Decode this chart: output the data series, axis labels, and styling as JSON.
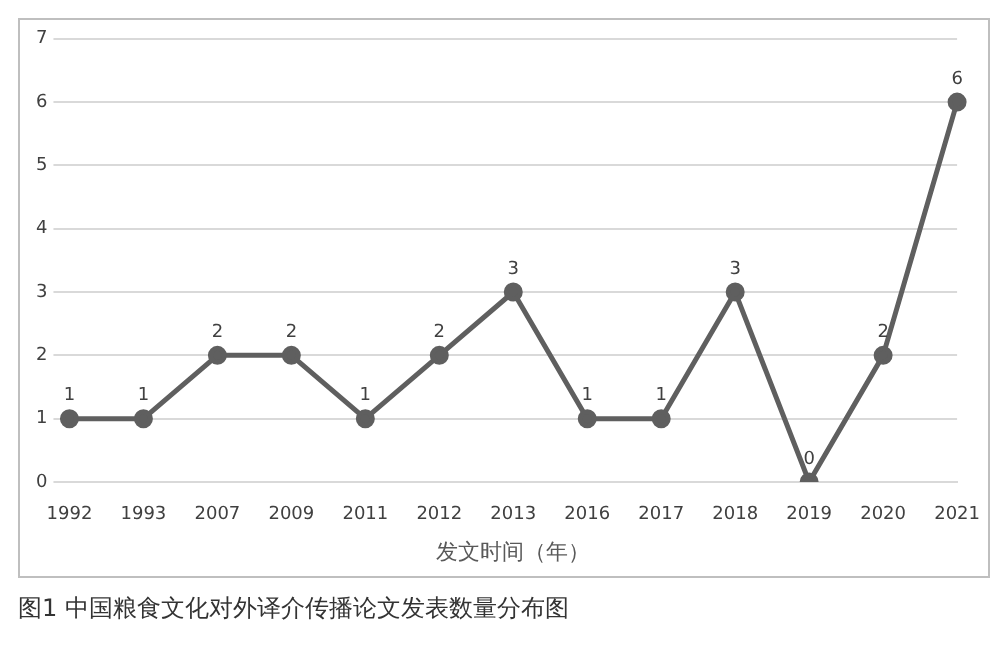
{
  "chart_data": {
    "type": "line",
    "xlabel": "发文时间（年）",
    "annotations": [
      "图1 中国粮食文化对外译介传播论文发表数量分布图"
    ],
    "categories": [
      "1992",
      "1993",
      "2007",
      "2009",
      "2011",
      "2012",
      "2013",
      "2016",
      "2017",
      "2018",
      "2019",
      "2020",
      "2021"
    ],
    "series": [
      {
        "color": "#5f5f5f",
        "values": [
          1,
          1,
          2,
          2,
          1,
          2,
          3,
          1,
          1,
          3,
          0,
          2,
          6
        ]
      }
    ],
    "ylim": [
      0,
      7
    ],
    "yticks": [
      0,
      1,
      2,
      3,
      4,
      5,
      6,
      7
    ],
    "grid": "y",
    "legend": false,
    "marker": "circle",
    "line_style": "solid",
    "data_labels": true
  }
}
